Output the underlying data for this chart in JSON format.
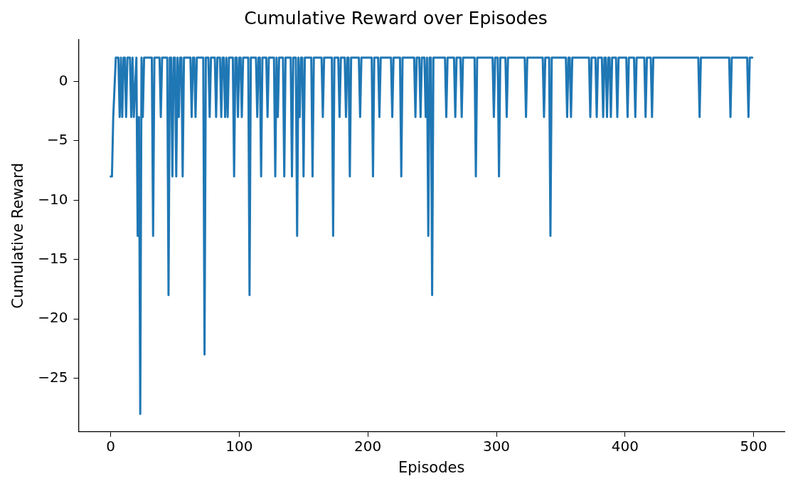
{
  "chart_data": {
    "type": "line",
    "title": "Cumulative Reward over Episodes",
    "xlabel": "Episodes",
    "ylabel": "Cumulative Reward",
    "xlim": [
      -25,
      524
    ],
    "xticks": [
      0,
      100,
      200,
      300,
      400,
      500
    ],
    "ylim": [
      -29.5,
      3.5
    ],
    "yticks": [
      -25,
      -20,
      -15,
      -10,
      -5,
      0
    ],
    "grid": false,
    "legend": false,
    "marker": "none",
    "line_style": "solid",
    "series": [
      {
        "color": "#1f77b4",
        "x": [
          0,
          1,
          2,
          4,
          6,
          7,
          8,
          9,
          10,
          11,
          12,
          13,
          15,
          16,
          17,
          18,
          20,
          21,
          22,
          23,
          24,
          25,
          26,
          32,
          33,
          34,
          38,
          39,
          40,
          44,
          45,
          46,
          47,
          48,
          49,
          50,
          51,
          52,
          53,
          54,
          55,
          56,
          57,
          62,
          63,
          64,
          65,
          66,
          67,
          72,
          73,
          74,
          76,
          77,
          78,
          81,
          82,
          83,
          85,
          86,
          87,
          88,
          89,
          90,
          91,
          92,
          95,
          96,
          97,
          98,
          99,
          100,
          101,
          102,
          103,
          107,
          108,
          109,
          113,
          114,
          115,
          116,
          117,
          118,
          121,
          122,
          123,
          127,
          128,
          129,
          130,
          131,
          134,
          135,
          136,
          140,
          141,
          142,
          144,
          145,
          146,
          147,
          148,
          149,
          150,
          151,
          156,
          157,
          158,
          164,
          165,
          166,
          172,
          173,
          174,
          177,
          178,
          179,
          182,
          183,
          184,
          185,
          186,
          187,
          193,
          194,
          195,
          203,
          204,
          205,
          208,
          209,
          210,
          218,
          219,
          220,
          225,
          226,
          227,
          236,
          237,
          238,
          240,
          241,
          242,
          244,
          245,
          246,
          247,
          248,
          249,
          250,
          251,
          260,
          261,
          262,
          267,
          268,
          269,
          272,
          273,
          274,
          283,
          284,
          285,
          297,
          298,
          299,
          301,
          302,
          303,
          307,
          308,
          309,
          322,
          323,
          324,
          336,
          337,
          338,
          341,
          342,
          343,
          354,
          355,
          356,
          357,
          358,
          359,
          372,
          373,
          374,
          377,
          378,
          379,
          382,
          383,
          384,
          385,
          386,
          387,
          388,
          389,
          390,
          393,
          394,
          395,
          401,
          402,
          403,
          407,
          408,
          409,
          415,
          416,
          417,
          420,
          421,
          422,
          457,
          458,
          459,
          481,
          482,
          483,
          495,
          496,
          497,
          499
        ],
        "values": [
          -8,
          -8,
          -3,
          2,
          2,
          -3,
          2,
          -3,
          2,
          2,
          -3,
          2,
          2,
          -3,
          2,
          -3,
          2,
          -13,
          -3,
          -28,
          2,
          -3,
          2,
          2,
          -13,
          2,
          2,
          -3,
          2,
          2,
          -18,
          2,
          2,
          -8,
          2,
          2,
          -8,
          2,
          -3,
          2,
          2,
          -8,
          2,
          2,
          -3,
          2,
          2,
          -3,
          2,
          2,
          -23,
          2,
          2,
          -3,
          2,
          2,
          -3,
          2,
          2,
          -3,
          2,
          2,
          -3,
          2,
          -3,
          2,
          2,
          -8,
          2,
          2,
          -3,
          2,
          2,
          -3,
          2,
          2,
          -18,
          2,
          2,
          -3,
          2,
          2,
          -8,
          2,
          2,
          -3,
          2,
          2,
          -8,
          2,
          -3,
          2,
          2,
          -8,
          2,
          2,
          -8,
          2,
          2,
          -13,
          2,
          -3,
          2,
          2,
          -8,
          2,
          2,
          -8,
          2,
          2,
          -3,
          2,
          2,
          -13,
          2,
          2,
          -3,
          2,
          2,
          -3,
          2,
          2,
          -8,
          2,
          2,
          -3,
          2,
          2,
          -8,
          2,
          2,
          -3,
          2,
          2,
          -3,
          2,
          2,
          -8,
          2,
          2,
          -3,
          2,
          2,
          -3,
          2,
          2,
          -3,
          2,
          -13,
          2,
          2,
          -18,
          2,
          2,
          -3,
          2,
          2,
          -3,
          2,
          2,
          -3,
          2,
          2,
          -8,
          2,
          2,
          -3,
          2,
          2,
          -8,
          2,
          2,
          -3,
          2,
          2,
          -3,
          2,
          2,
          -3,
          2,
          2,
          -13,
          2,
          2,
          -3,
          2,
          2,
          -3,
          2,
          2,
          -3,
          2,
          2,
          -3,
          2,
          2,
          -3,
          2,
          2,
          -3,
          2,
          2,
          -3,
          2,
          2,
          -3,
          2,
          2,
          -3,
          2,
          2,
          -3,
          2,
          2,
          -3,
          2,
          2,
          -3,
          2,
          2,
          -3,
          2,
          2,
          -3,
          2,
          2,
          -3,
          2,
          2
        ]
      }
    ]
  }
}
